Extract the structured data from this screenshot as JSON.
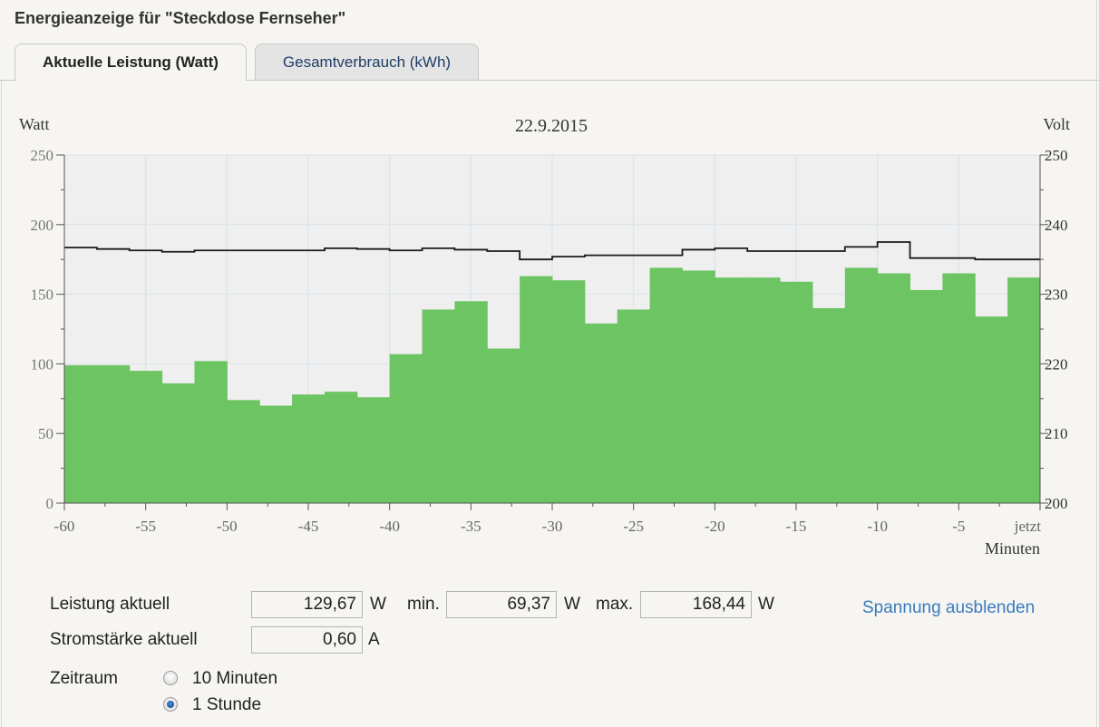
{
  "window": {
    "title": "Energieanzeige für \"Steckdose Fernseher\""
  },
  "tabs": [
    {
      "label": "Aktuelle Leistung (Watt)",
      "active": true
    },
    {
      "label": "Gesamtverbrauch (kWh)",
      "active": false
    }
  ],
  "chart_data": {
    "type": "bar",
    "title": "22.9.2015",
    "ylabel": "Watt",
    "y2label": "Volt",
    "xlabel": "Minuten",
    "xlim": [
      -60,
      0
    ],
    "ylim": [
      0,
      250
    ],
    "y2lim": [
      200,
      250
    ],
    "x_ticks": [
      "-60",
      "-55",
      "-50",
      "-45",
      "-40",
      "-35",
      "-30",
      "-25",
      "-20",
      "-15",
      "-10",
      "-5",
      "jetzt"
    ],
    "y_ticks": [
      "0",
      "50",
      "100",
      "150",
      "200",
      "250"
    ],
    "y2_ticks": [
      "200",
      "210",
      "220",
      "230",
      "240",
      "250"
    ],
    "grid": true,
    "colors": {
      "bars": "#6cc462",
      "line": "#1a1a1a",
      "plot_bg": "#efefef"
    },
    "series": [
      {
        "type": "bar",
        "axis": "left",
        "x_start": [
          -60,
          -58,
          -56,
          -54,
          -52,
          -50,
          -48,
          -46,
          -44,
          -42,
          -40,
          -38,
          -36,
          -34,
          -32,
          -30,
          -28,
          -26,
          -24,
          -22,
          -20,
          -18,
          -16,
          -14,
          -12,
          -10,
          -8,
          -6,
          -4,
          -2
        ],
        "values": [
          99,
          99,
          95,
          86,
          102,
          74,
          70,
          78,
          80,
          76,
          107,
          139,
          145,
          111,
          163,
          160,
          129,
          139,
          169,
          167,
          162,
          162,
          159,
          140,
          169,
          165,
          153,
          165,
          134,
          162
        ]
      },
      {
        "type": "step-line",
        "axis": "right",
        "x": [
          -60,
          -58,
          -56,
          -54,
          -52,
          -50,
          -48,
          -46,
          -44,
          -42,
          -40,
          -38,
          -36,
          -34,
          -32,
          -30,
          -28,
          -26,
          -24,
          -22,
          -20,
          -18,
          -16,
          -14,
          -12,
          -10,
          -8,
          -6,
          -4,
          -2,
          0
        ],
        "values": [
          236.7,
          236.5,
          236.3,
          236.1,
          236.3,
          236.3,
          236.3,
          236.3,
          236.6,
          236.5,
          236.3,
          236.6,
          236.4,
          236.2,
          235.0,
          235.4,
          235.6,
          235.6,
          235.6,
          236.4,
          236.6,
          236.2,
          236.2,
          236.2,
          236.8,
          237.5,
          235.2,
          235.2,
          235.0,
          235.0,
          235.0
        ]
      }
    ]
  },
  "metrics": {
    "leistung_label": "Leistung aktuell",
    "leistung_value": "129,67",
    "leistung_unit": "W",
    "min_label": "min.",
    "min_value": "69,37",
    "min_unit": "W",
    "max_label": "max.",
    "max_value": "168,44",
    "max_unit": "W",
    "strom_label": "Stromstärke aktuell",
    "strom_value": "0,60",
    "strom_unit": "A"
  },
  "voltage_toggle": {
    "label": "Spannung ausblenden"
  },
  "zeitraum": {
    "label": "Zeitraum",
    "options": [
      {
        "label": "10 Minuten",
        "checked": false
      },
      {
        "label": "1 Stunde",
        "checked": true
      }
    ]
  }
}
